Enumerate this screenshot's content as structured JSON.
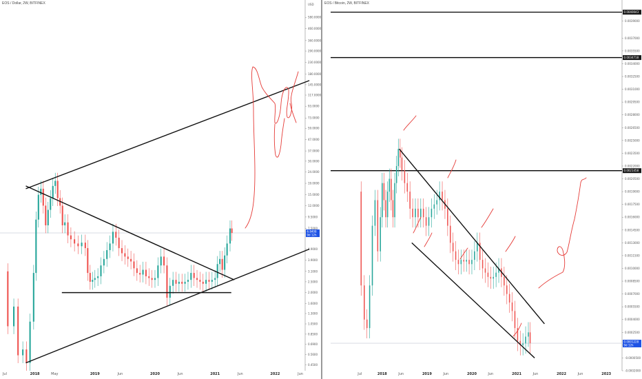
{
  "chart_data": [
    {
      "type": "candlestick",
      "symbol_header": "EOS / Dollar, 2W, BITFINEX",
      "currency_label": "USD",
      "log_scale": true,
      "ylim": [
        0.4,
        700
      ],
      "y_ticks": [
        {
          "v": 580,
          "label": "580.0000"
        },
        {
          "v": 460,
          "label": "460.0000"
        },
        {
          "v": 360,
          "label": "360.0000"
        },
        {
          "v": 290,
          "label": "290.0000"
        },
        {
          "v": 230,
          "label": "230.0000"
        },
        {
          "v": 180,
          "label": "180.0000"
        },
        {
          "v": 145,
          "label": "145.0000"
        },
        {
          "v": 117,
          "label": "117.0000"
        },
        {
          "v": 93,
          "label": "93.0000"
        },
        {
          "v": 73,
          "label": "73.0000"
        },
        {
          "v": 59,
          "label": "59.0000"
        },
        {
          "v": 47,
          "label": "47.0000"
        },
        {
          "v": 37,
          "label": "37.0000"
        },
        {
          "v": 30,
          "label": "30.0000"
        },
        {
          "v": 24,
          "label": "24.0000"
        },
        {
          "v": 19,
          "label": "19.0000"
        },
        {
          "v": 15,
          "label": "15.0000"
        },
        {
          "v": 12,
          "label": "12.0000"
        },
        {
          "v": 9.5,
          "label": "9.5000"
        },
        {
          "v": 7.5,
          "label": "7.5000"
        },
        {
          "v": 4.9,
          "label": "4.9000"
        },
        {
          "v": 3.9,
          "label": "3.9000"
        },
        {
          "v": 3.1,
          "label": "3.1000"
        },
        {
          "v": 2.5,
          "label": "2.5000"
        },
        {
          "v": 2.0,
          "label": "2.0000"
        },
        {
          "v": 1.6,
          "label": "1.6000"
        },
        {
          "v": 1.3,
          "label": "1.3000"
        },
        {
          "v": 1.05,
          "label": "1.0500"
        },
        {
          "v": 0.85,
          "label": "0.8500"
        },
        {
          "v": 0.69,
          "label": "0.6900"
        },
        {
          "v": 0.56,
          "label": "0.5600"
        },
        {
          "v": 0.45,
          "label": "0.4500"
        }
      ],
      "x_range": [
        2017.42,
        2022.5
      ],
      "x_ticks": [
        {
          "v": 2017.5,
          "label": "Jul",
          "bold": false
        },
        {
          "v": 2018.0,
          "label": "2018",
          "bold": true
        },
        {
          "v": 2018.33,
          "label": "May",
          "bold": false
        },
        {
          "v": 2019.0,
          "label": "2019",
          "bold": true
        },
        {
          "v": 2019.42,
          "label": "Jun",
          "bold": false
        },
        {
          "v": 2020.0,
          "label": "2020",
          "bold": true
        },
        {
          "v": 2020.42,
          "label": "Jun",
          "bold": false
        },
        {
          "v": 2021.0,
          "label": "2021",
          "bold": true
        },
        {
          "v": 2021.42,
          "label": "Jun",
          "bold": false
        },
        {
          "v": 2022.0,
          "label": "2022",
          "bold": true
        },
        {
          "v": 2022.42,
          "label": "Jun",
          "bold": false
        }
      ],
      "last_price_label": "6.8408",
      "last_price_value": 6.84,
      "countdown_label": "9d 12h",
      "price_series": [
        [
          2017.47,
          3.1
        ],
        [
          2017.55,
          1.0
        ],
        [
          2017.65,
          1.5
        ],
        [
          2017.72,
          0.55
        ],
        [
          2017.8,
          0.62
        ],
        [
          2017.86,
          0.47
        ],
        [
          2017.92,
          1.1
        ],
        [
          2017.98,
          3.0
        ],
        [
          2018.02,
          9.0
        ],
        [
          2018.06,
          15
        ],
        [
          2018.1,
          17
        ],
        [
          2018.14,
          12
        ],
        [
          2018.18,
          8.0
        ],
        [
          2018.22,
          11
        ],
        [
          2018.26,
          14
        ],
        [
          2018.3,
          18
        ],
        [
          2018.34,
          20
        ],
        [
          2018.38,
          14
        ],
        [
          2018.42,
          12
        ],
        [
          2018.46,
          8.0
        ],
        [
          2018.5,
          8.5
        ],
        [
          2018.55,
          6.5
        ],
        [
          2018.6,
          6.0
        ],
        [
          2018.66,
          5.5
        ],
        [
          2018.72,
          5.2
        ],
        [
          2018.78,
          5.6
        ],
        [
          2018.84,
          5.0
        ],
        [
          2018.88,
          3.0
        ],
        [
          2018.92,
          2.5
        ],
        [
          2018.96,
          2.6
        ],
        [
          2019.0,
          2.7
        ],
        [
          2019.05,
          2.8
        ],
        [
          2019.1,
          3.5
        ],
        [
          2019.15,
          4.0
        ],
        [
          2019.2,
          4.8
        ],
        [
          2019.25,
          5.5
        ],
        [
          2019.3,
          7.0
        ],
        [
          2019.35,
          6.2
        ],
        [
          2019.4,
          5.0
        ],
        [
          2019.45,
          4.5
        ],
        [
          2019.5,
          4.2
        ],
        [
          2019.55,
          4.0
        ],
        [
          2019.6,
          3.8
        ],
        [
          2019.65,
          3.3
        ],
        [
          2019.7,
          3.0
        ],
        [
          2019.75,
          2.9
        ],
        [
          2019.8,
          3.2
        ],
        [
          2019.85,
          2.8
        ],
        [
          2019.9,
          2.7
        ],
        [
          2019.95,
          2.6
        ],
        [
          2020.0,
          2.7
        ],
        [
          2020.05,
          3.5
        ],
        [
          2020.1,
          4.2
        ],
        [
          2020.15,
          3.5
        ],
        [
          2020.2,
          1.8
        ],
        [
          2020.25,
          2.3
        ],
        [
          2020.3,
          2.6
        ],
        [
          2020.35,
          2.4
        ],
        [
          2020.4,
          2.5
        ],
        [
          2020.45,
          2.4
        ],
        [
          2020.5,
          2.5
        ],
        [
          2020.55,
          2.6
        ],
        [
          2020.6,
          3.0
        ],
        [
          2020.65,
          2.7
        ],
        [
          2020.7,
          2.6
        ],
        [
          2020.75,
          2.5
        ],
        [
          2020.8,
          2.4
        ],
        [
          2020.85,
          2.6
        ],
        [
          2020.9,
          2.5
        ],
        [
          2020.95,
          2.6
        ],
        [
          2021.0,
          2.7
        ],
        [
          2021.04,
          3.6
        ],
        [
          2021.08,
          4.0
        ],
        [
          2021.12,
          3.2
        ],
        [
          2021.16,
          4.3
        ],
        [
          2021.2,
          5.5
        ],
        [
          2021.25,
          7.5
        ],
        [
          2021.28,
          6.84
        ]
      ],
      "trendlines": [
        {
          "x1": 2017.85,
          "y1": 17,
          "x2": 2022.57,
          "y2": 158
        },
        {
          "x1": 2017.85,
          "y1": 0.47,
          "x2": 2022.57,
          "y2": 4.9
        },
        {
          "x1": 2017.85,
          "y1": 18,
          "x2": 2021.32,
          "y2": 2.6
        },
        {
          "x1": 2018.45,
          "y1": 2.0,
          "x2": 2021.27,
          "y2": 2.0
        }
      ]
    },
    {
      "type": "candlestick",
      "symbol_header": "EOS / Bitcoin, 2W, BITFINEX",
      "log_scale": false,
      "ylim": [
        -0.0002,
        0.00405
      ],
      "y_ticks": [
        {
          "v": 0.0039,
          "label": "0.0039000"
        },
        {
          "v": 0.0037,
          "label": "0.0037000"
        },
        {
          "v": 0.00355,
          "label": "0.0035500"
        },
        {
          "v": 0.0034,
          "label": "0.0034000"
        },
        {
          "v": 0.00325,
          "label": "0.0032500"
        },
        {
          "v": 0.0031,
          "label": "0.0031000"
        },
        {
          "v": 0.00295,
          "label": "0.0029500"
        },
        {
          "v": 0.0028,
          "label": "0.0028000"
        },
        {
          "v": 0.00265,
          "label": "0.0026500"
        },
        {
          "v": 0.0025,
          "label": "0.0025000"
        },
        {
          "v": 0.00235,
          "label": "0.0023500"
        },
        {
          "v": 0.0022,
          "label": "0.0022000"
        },
        {
          "v": 0.00205,
          "label": "0.0020500"
        },
        {
          "v": 0.0019,
          "label": "0.0019000"
        },
        {
          "v": 0.00175,
          "label": "0.0017500"
        },
        {
          "v": 0.0016,
          "label": "0.0016000"
        },
        {
          "v": 0.00145,
          "label": "0.0014500"
        },
        {
          "v": 0.0013,
          "label": "0.0013000"
        },
        {
          "v": 0.00115,
          "label": "0.0011500"
        },
        {
          "v": 0.001,
          "label": "0.0010000"
        },
        {
          "v": 0.00085,
          "label": "0.0008500"
        },
        {
          "v": 0.0007,
          "label": "0.0007000"
        },
        {
          "v": 0.00055,
          "label": "0.0005500"
        },
        {
          "v": 0.0004,
          "label": "0.0004000"
        },
        {
          "v": 0.00025,
          "label": "0.0002500"
        },
        {
          "v": 0.0001,
          "label": "0.0001000"
        },
        {
          "v": -5e-05,
          "label": "-0.0000500"
        },
        {
          "v": -0.0002,
          "label": "-0.0002000"
        }
      ],
      "x_range": [
        2016.85,
        2023.35
      ],
      "x_ticks": [
        {
          "v": 2017.5,
          "label": "Jul",
          "bold": false
        },
        {
          "v": 2018.0,
          "label": "2018",
          "bold": true
        },
        {
          "v": 2018.42,
          "label": "Jun",
          "bold": false
        },
        {
          "v": 2019.0,
          "label": "2019",
          "bold": true
        },
        {
          "v": 2019.42,
          "label": "Jun",
          "bold": false
        },
        {
          "v": 2020.0,
          "label": "2020",
          "bold": true
        },
        {
          "v": 2020.42,
          "label": "Jun",
          "bold": false
        },
        {
          "v": 2021.0,
          "label": "2021",
          "bold": true
        },
        {
          "v": 2021.42,
          "label": "Jun",
          "bold": false
        },
        {
          "v": 2022.0,
          "label": "2022",
          "bold": true
        },
        {
          "v": 2022.42,
          "label": "Jun",
          "bold": false
        },
        {
          "v": 2023.0,
          "label": "2023",
          "bold": true
        }
      ],
      "horizontal_levels": [
        {
          "v": 0.0040043,
          "label": "0.0040043"
        },
        {
          "v": 0.0034718,
          "label": "0.0034718"
        },
        {
          "v": 0.0021458,
          "label": "0.0021458"
        }
      ],
      "last_price_label": "0.0001228",
      "last_price_value": 0.0001228,
      "countdown_label": "9d 12h",
      "price_series": [
        [
          2017.47,
          0.0019
        ],
        [
          2017.53,
          0.0008
        ],
        [
          2017.6,
          0.0004
        ],
        [
          2017.66,
          0.0003
        ],
        [
          2017.72,
          0.0008
        ],
        [
          2017.78,
          0.0015
        ],
        [
          2017.84,
          0.0018
        ],
        [
          2017.9,
          0.0012
        ],
        [
          2017.96,
          0.0016
        ],
        [
          2018.0,
          0.002
        ],
        [
          2018.04,
          0.0018
        ],
        [
          2018.08,
          0.0016
        ],
        [
          2018.12,
          0.0019
        ],
        [
          2018.16,
          0.00205
        ],
        [
          2018.2,
          0.0018
        ],
        [
          2018.24,
          0.0016
        ],
        [
          2018.28,
          0.002
        ],
        [
          2018.32,
          0.0022
        ],
        [
          2018.36,
          0.0024
        ],
        [
          2018.4,
          0.0023
        ],
        [
          2018.44,
          0.00215
        ],
        [
          2018.5,
          0.002
        ],
        [
          2018.56,
          0.0019
        ],
        [
          2018.62,
          0.0017
        ],
        [
          2018.68,
          0.0016
        ],
        [
          2018.74,
          0.0017
        ],
        [
          2018.8,
          0.0016
        ],
        [
          2018.86,
          0.0017
        ],
        [
          2018.92,
          0.0016
        ],
        [
          2018.98,
          0.0015
        ],
        [
          2019.04,
          0.0016
        ],
        [
          2019.1,
          0.0017
        ],
        [
          2019.16,
          0.00175
        ],
        [
          2019.22,
          0.0018
        ],
        [
          2019.28,
          0.0019
        ],
        [
          2019.34,
          0.0018
        ],
        [
          2019.4,
          0.0017
        ],
        [
          2019.46,
          0.0015
        ],
        [
          2019.52,
          0.0013
        ],
        [
          2019.58,
          0.0012
        ],
        [
          2019.64,
          0.0011
        ],
        [
          2019.7,
          0.00105
        ],
        [
          2019.76,
          0.0011
        ],
        [
          2019.82,
          0.00108
        ],
        [
          2019.88,
          0.0011
        ],
        [
          2019.94,
          0.00105
        ],
        [
          2020.0,
          0.0011
        ],
        [
          2020.06,
          0.0012
        ],
        [
          2020.12,
          0.0013
        ],
        [
          2020.18,
          0.0011
        ],
        [
          2020.24,
          0.001
        ],
        [
          2020.3,
          0.00095
        ],
        [
          2020.36,
          0.0009
        ],
        [
          2020.42,
          0.00088
        ],
        [
          2020.48,
          0.0009
        ],
        [
          2020.54,
          0.00095
        ],
        [
          2020.6,
          0.001
        ],
        [
          2020.66,
          0.0009
        ],
        [
          2020.72,
          0.0008
        ],
        [
          2020.78,
          0.0007
        ],
        [
          2020.84,
          0.0006
        ],
        [
          2020.9,
          0.0005
        ],
        [
          2020.96,
          0.0003
        ],
        [
          2021.02,
          0.00015
        ],
        [
          2021.08,
          0.0001
        ],
        [
          2021.14,
          0.00012
        ],
        [
          2021.2,
          0.0002
        ],
        [
          2021.26,
          0.00025
        ],
        [
          2021.3,
          0.0001228
        ]
      ],
      "trendlines": [
        {
          "x1": 2018.38,
          "y1": 0.0024,
          "x2": 2021.62,
          "y2": 0.00035
        },
        {
          "x1": 2018.66,
          "y1": 0.0013,
          "x2": 2021.4,
          "y2": -5e-05
        }
      ]
    }
  ]
}
